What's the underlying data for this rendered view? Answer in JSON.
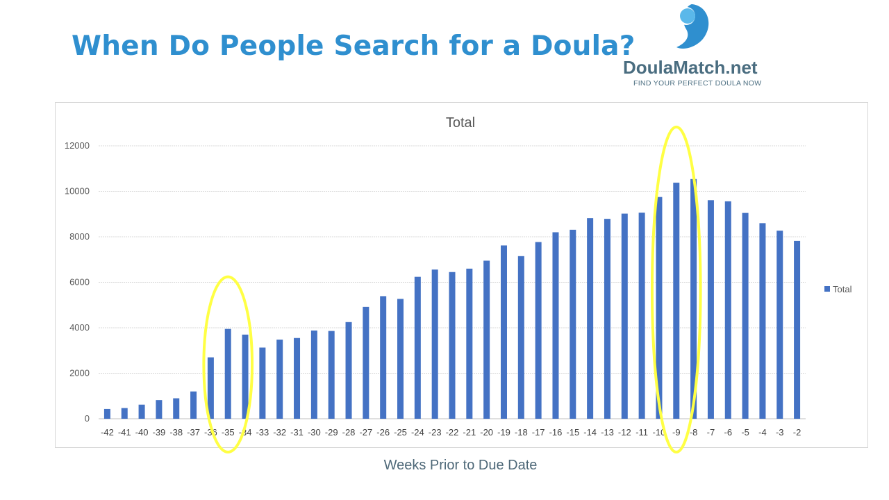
{
  "title": "When Do People Search for a Doula?",
  "logo": {
    "brand": "DoulaMatch.net",
    "tagline": "FIND YOUR PERFECT DOULA NOW"
  },
  "colors": {
    "title": "#2f8fcf",
    "bar": "#4472c4",
    "highlight": "#ffff44",
    "grid": "#d9d9d9"
  },
  "chart_data": {
    "type": "bar",
    "title": "Total",
    "xlabel": "Weeks Prior to Due Date",
    "ylabel": "",
    "ylim": [
      0,
      12000
    ],
    "yticks": [
      0,
      2000,
      4000,
      6000,
      8000,
      10000,
      12000
    ],
    "grid": true,
    "legend": {
      "position": "right",
      "entries": [
        "Total"
      ]
    },
    "categories": [
      "-42",
      "-41",
      "-40",
      "-39",
      "-38",
      "-37",
      "-36",
      "-35",
      "-34",
      "-33",
      "-32",
      "-31",
      "-30",
      "-29",
      "-28",
      "-27",
      "-26",
      "-25",
      "-24",
      "-23",
      "-22",
      "-21",
      "-20",
      "-19",
      "-18",
      "-17",
      "-16",
      "-15",
      "-14",
      "-13",
      "-12",
      "-11",
      "-10",
      "-9",
      "-8",
      "-7",
      "-6",
      "-5",
      "-4",
      "-3",
      "-2"
    ],
    "series": [
      {
        "name": "Total",
        "values": [
          430,
          470,
          620,
          820,
          900,
          1200,
          2700,
          3950,
          3700,
          3130,
          3480,
          3550,
          3880,
          3860,
          4250,
          4920,
          5390,
          5270,
          6240,
          6560,
          6450,
          6600,
          6950,
          7620,
          7150,
          7770,
          8200,
          8310,
          8820,
          8790,
          9020,
          9060,
          9750,
          10380,
          10540,
          9610,
          9560,
          9050,
          8600,
          8270,
          7820
        ]
      }
    ],
    "highlights": [
      {
        "categories": [
          "-36",
          "-34"
        ]
      },
      {
        "categories": [
          "-10",
          "-8"
        ]
      }
    ]
  }
}
